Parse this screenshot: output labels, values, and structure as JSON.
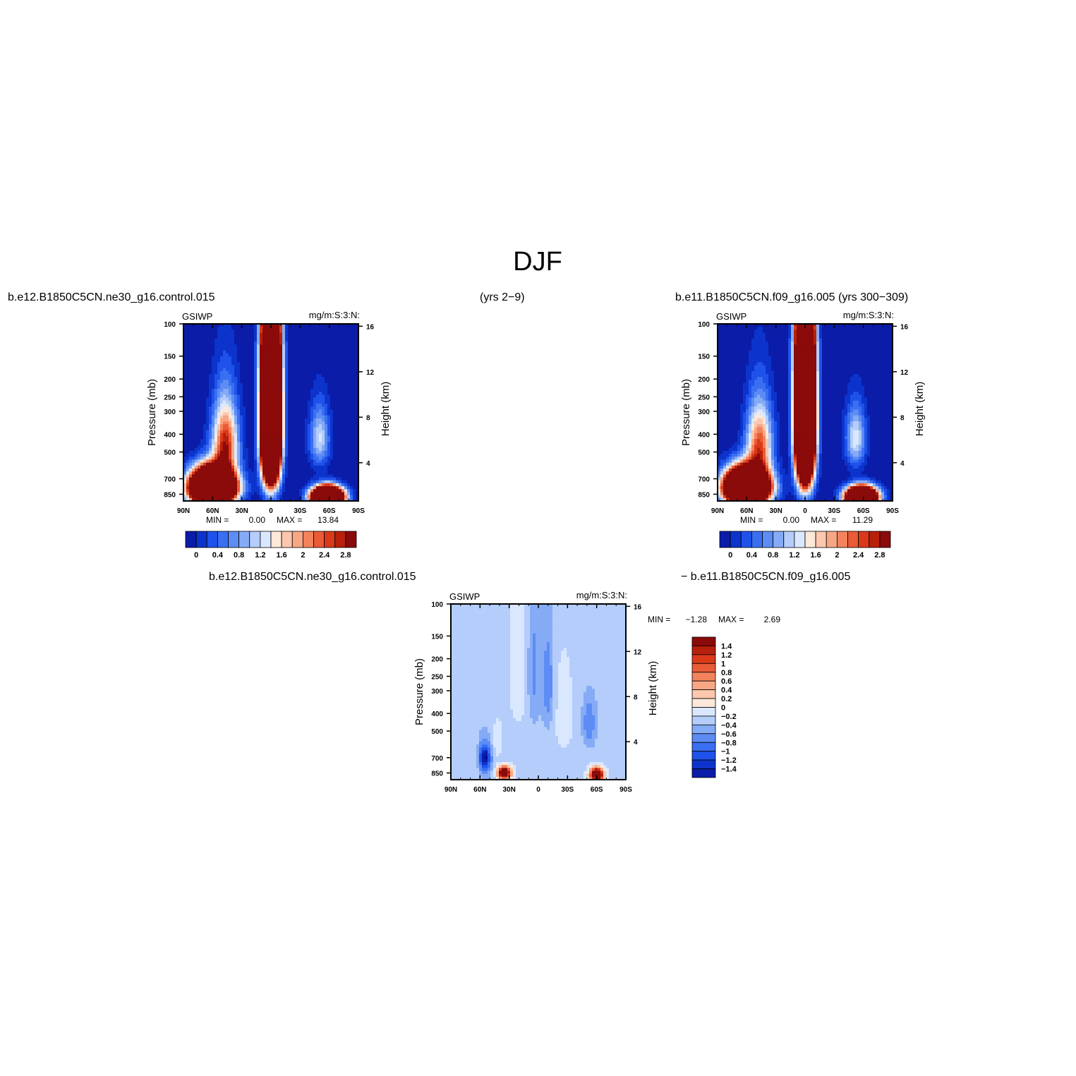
{
  "figure": {
    "title": "DJF",
    "caption_top_left": "b.e12.B1850C5CN.ne30_g16.control.015",
    "caption_top_mid": "(yrs 2−9)",
    "caption_top_right": "b.e11.B1850C5CN.f09_g16.005 (yrs 300−309)",
    "caption_bottom_left": "b.e12.B1850C5CN.ne30_g16.control.015",
    "caption_bottom_right": "− b.e11.B1850C5CN.f09_g16.005"
  },
  "colors": {
    "abs_levels": [
      "#08088c",
      "#0a1ca8",
      "#0c34cc",
      "#1f52ea",
      "#3a6ff2",
      "#5c8cf4",
      "#86abf6",
      "#b4cdfa",
      "#d9e8ff",
      "#fde8da",
      "#fbc7ad",
      "#f8a785",
      "#f3835d",
      "#ea5b37",
      "#da3a1a",
      "#b7200a",
      "#8b0a0a"
    ],
    "diff_levels": [
      "#08088c",
      "#0a1ca8",
      "#0c34cc",
      "#1f52ea",
      "#3a6ff2",
      "#5c8cf4",
      "#86abf6",
      "#b4cdfa",
      "#d9e8ff",
      "#fde8da",
      "#fbc7ad",
      "#f8a785",
      "#f3835d",
      "#ea5b37",
      "#da3a1a",
      "#b7200a",
      "#8b0a0a"
    ]
  },
  "chart_data": [
    {
      "type": "heatmap",
      "panel": "model-1",
      "variable": "GSIWP",
      "units": "mg/m:S:3:N:",
      "xlabel": "",
      "ylabel": "Pressure (mb)",
      "ylabel_right": "Height (km)",
      "x_ticks": [
        "90N",
        "60N",
        "30N",
        "0",
        "30S",
        "60S",
        "90S"
      ],
      "y_ticks": [
        "100",
        "150",
        "200",
        "250",
        "300",
        "400",
        "500",
        "700",
        "850"
      ],
      "y_ticks_right": [
        "16",
        "12",
        "8",
        "4"
      ],
      "min_label": "MIN =",
      "min_value": "0.00",
      "max_label": "MAX =",
      "max_value": "13.84",
      "colorbar_labels": [
        "0",
        "0.4",
        "0.8",
        "1.2",
        "1.6",
        "2",
        "2.4",
        "2.8"
      ],
      "blobs": [
        {
          "lat": 60,
          "p": 780,
          "amp": 15,
          "wlat": 14,
          "wp": 110
        },
        {
          "lat": 47,
          "p": 450,
          "amp": 2.9,
          "wlat": 9,
          "wp": 150
        },
        {
          "lat": 0,
          "p": 330,
          "amp": 18,
          "wlat": 6,
          "wp": 230
        },
        {
          "lat": -50,
          "p": 420,
          "amp": 1.4,
          "wlat": 7,
          "wp": 110
        },
        {
          "lat": -58,
          "p": 880,
          "amp": 13,
          "wlat": 10,
          "wp": 70
        }
      ]
    },
    {
      "type": "heatmap",
      "panel": "model-2",
      "variable": "GSIWP",
      "units": "mg/m:S:3:N:",
      "xlabel": "",
      "ylabel": "Pressure (mb)",
      "ylabel_right": "Height (km)",
      "x_ticks": [
        "90N",
        "60N",
        "30N",
        "0",
        "30S",
        "60S",
        "90S"
      ],
      "y_ticks": [
        "100",
        "150",
        "200",
        "250",
        "300",
        "400",
        "500",
        "700",
        "850"
      ],
      "y_ticks_right": [
        "16",
        "12",
        "8",
        "4"
      ],
      "min_label": "MIN =",
      "min_value": "0.00",
      "max_label": "MAX =",
      "max_value": "11.29",
      "colorbar_labels": [
        "0",
        "0.4",
        "0.8",
        "1.2",
        "1.6",
        "2",
        "2.4",
        "2.8"
      ],
      "blobs": [
        {
          "lat": 60,
          "p": 780,
          "amp": 14,
          "wlat": 14,
          "wp": 110
        },
        {
          "lat": 47,
          "p": 460,
          "amp": 2.6,
          "wlat": 9,
          "wp": 150
        },
        {
          "lat": 0,
          "p": 320,
          "amp": 17,
          "wlat": 6,
          "wp": 240
        },
        {
          "lat": -52,
          "p": 420,
          "amp": 1.5,
          "wlat": 7,
          "wp": 110
        },
        {
          "lat": -58,
          "p": 880,
          "amp": 12,
          "wlat": 10,
          "wp": 70
        }
      ]
    },
    {
      "type": "heatmap",
      "panel": "difference",
      "variable": "GSIWP",
      "units": "mg/m:S:3:N:",
      "xlabel": "",
      "ylabel": "Pressure (mb)",
      "ylabel_right": "Height (km)",
      "x_ticks": [
        "90N",
        "60N",
        "30N",
        "0",
        "30S",
        "60S",
        "90S"
      ],
      "y_ticks": [
        "100",
        "150",
        "200",
        "250",
        "300",
        "400",
        "500",
        "700",
        "850"
      ],
      "y_ticks_right": [
        "16",
        "12",
        "8",
        "4"
      ],
      "min_label": "MIN =",
      "min_value": "−1.28",
      "max_label": "MAX =",
      "max_value": "2.69",
      "colorbar_labels": [
        "1.4",
        "1.2",
        "1",
        "0.8",
        "0.6",
        "0.4",
        "0.2",
        "0",
        "−0.2",
        "−0.4",
        "−0.6",
        "−0.8",
        "−1",
        "−1.2",
        "−1.4"
      ],
      "blobs": [
        {
          "lat": 55,
          "p": 700,
          "amp": -1.3,
          "wlat": 4,
          "wp": 80
        },
        {
          "lat": 35,
          "p": 850,
          "amp": 2.6,
          "wlat": 5,
          "wp": 50
        },
        {
          "lat": 42,
          "p": 560,
          "amp": 0.35,
          "wlat": 4,
          "wp": 120
        },
        {
          "lat": 5,
          "p": 230,
          "amp": -0.45,
          "wlat": 5,
          "wp": 150
        },
        {
          "lat": -10,
          "p": 280,
          "amp": -0.5,
          "wlat": 4,
          "wp": 120
        },
        {
          "lat": -60,
          "p": 870,
          "amp": 2.7,
          "wlat": 5,
          "wp": 55
        },
        {
          "lat": -52,
          "p": 450,
          "amp": -0.5,
          "wlat": 5,
          "wp": 100
        },
        {
          "lat": -25,
          "p": 400,
          "amp": 0.2,
          "wlat": 8,
          "wp": 200
        },
        {
          "lat": 20,
          "p": 200,
          "amp": 0.18,
          "wlat": 12,
          "wp": 200
        }
      ]
    }
  ]
}
